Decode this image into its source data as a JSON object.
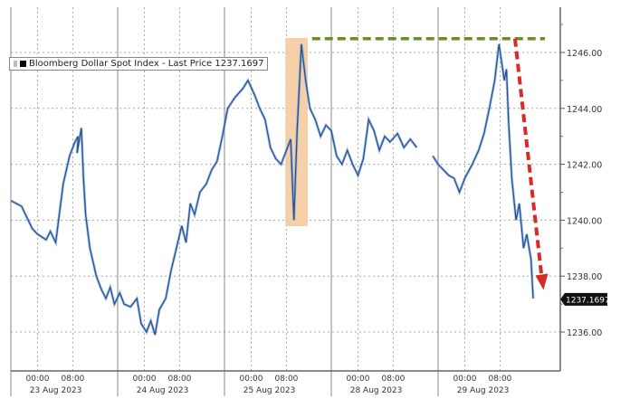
{
  "chart_data": {
    "type": "line",
    "title": "",
    "legend": {
      "label": "Bloomberg Dollar Spot Index - Last Price 1237.1697",
      "placement": "top-left"
    },
    "last_price_label": "1237.1697",
    "ylim": [
      1234.6,
      1248.3
    ],
    "y_ticks": [
      "1236.00",
      "1238.00",
      "1240.00",
      "1242.00",
      "1244.00",
      "1246.00"
    ],
    "y_tick_values": [
      1236,
      1238,
      1240,
      1242,
      1244,
      1246
    ],
    "x_days": [
      "23 Aug 2023",
      "24 Aug 2023",
      "25 Aug 2023",
      "28 Aug 2023",
      "29 Aug 2023"
    ],
    "x_hour_labels": [
      "00:00",
      "08:00"
    ],
    "xlim_days": [
      0,
      5.15
    ],
    "series": [
      {
        "name": "Bloomberg Dollar Spot Index",
        "color": "#2a4f8f",
        "points": [
          [
            0.0,
            1240.7
          ],
          [
            0.1,
            1240.5
          ],
          [
            0.2,
            1239.7
          ],
          [
            0.25,
            1239.5
          ],
          [
            0.33,
            1239.3
          ],
          [
            0.37,
            1239.6
          ],
          [
            0.42,
            1239.2
          ],
          [
            0.49,
            1241.3
          ],
          [
            0.55,
            1242.3
          ],
          [
            0.6,
            1242.8
          ],
          [
            0.63,
            1243.0
          ],
          [
            0.62,
            1242.4
          ],
          [
            0.66,
            1243.3
          ],
          [
            0.68,
            1241.5
          ],
          [
            0.7,
            1240.2
          ],
          [
            0.74,
            1239.0
          ],
          [
            0.8,
            1238.0
          ],
          [
            0.85,
            1237.5
          ],
          [
            0.89,
            1237.2
          ],
          [
            0.93,
            1237.6
          ],
          [
            0.97,
            1237.0
          ],
          [
            1.02,
            1237.4
          ],
          [
            1.06,
            1237.0
          ],
          [
            1.12,
            1236.9
          ],
          [
            1.18,
            1237.2
          ],
          [
            1.22,
            1236.3
          ],
          [
            1.27,
            1236.0
          ],
          [
            1.31,
            1236.4
          ],
          [
            1.35,
            1235.9
          ],
          [
            1.39,
            1236.8
          ],
          [
            1.45,
            1237.2
          ],
          [
            1.5,
            1238.2
          ],
          [
            1.55,
            1239.0
          ],
          [
            1.6,
            1239.8
          ],
          [
            1.64,
            1239.2
          ],
          [
            1.68,
            1240.6
          ],
          [
            1.72,
            1240.2
          ],
          [
            1.77,
            1241.0
          ],
          [
            1.83,
            1241.3
          ],
          [
            1.88,
            1241.8
          ],
          [
            1.93,
            1242.1
          ],
          [
            1.98,
            1243.0
          ],
          [
            2.03,
            1244.0
          ],
          [
            2.1,
            1244.4
          ],
          [
            2.17,
            1244.7
          ],
          [
            2.22,
            1245.0
          ],
          [
            2.28,
            1244.5
          ],
          [
            2.33,
            1244.0
          ],
          [
            2.38,
            1243.6
          ],
          [
            2.43,
            1242.6
          ],
          [
            2.48,
            1242.2
          ],
          [
            2.53,
            1242.0
          ],
          [
            2.58,
            1242.5
          ],
          [
            2.62,
            1242.9
          ],
          [
            2.65,
            1240.0
          ],
          [
            2.68,
            1243.2
          ],
          [
            2.72,
            1246.3
          ],
          [
            2.76,
            1245.0
          ],
          [
            2.8,
            1244.0
          ],
          [
            2.85,
            1243.6
          ],
          [
            2.9,
            1243.0
          ],
          [
            2.95,
            1243.4
          ],
          [
            3.0,
            1243.2
          ],
          [
            3.05,
            1242.3
          ],
          [
            3.1,
            1242.0
          ],
          [
            3.15,
            1242.5
          ],
          [
            3.2,
            1242.0
          ],
          [
            3.25,
            1241.6
          ],
          [
            3.3,
            1242.2
          ],
          [
            3.35,
            1243.6
          ],
          [
            3.4,
            1243.2
          ],
          [
            3.45,
            1242.5
          ],
          [
            3.5,
            1243.0
          ],
          [
            3.55,
            1242.8
          ],
          [
            3.62,
            1243.1
          ],
          [
            3.68,
            1242.6
          ],
          [
            3.74,
            1242.9
          ],
          [
            3.8,
            1242.6
          ],
          [
            3.95,
            1242.3
          ],
          [
            4.0,
            1242.0
          ],
          [
            4.05,
            1241.8
          ],
          [
            4.1,
            1241.6
          ],
          [
            4.15,
            1241.5
          ],
          [
            4.2,
            1241.0
          ],
          [
            4.25,
            1241.5
          ],
          [
            4.32,
            1242.0
          ],
          [
            4.38,
            1242.5
          ],
          [
            4.43,
            1243.1
          ],
          [
            4.48,
            1244.0
          ],
          [
            4.53,
            1245.0
          ],
          [
            4.57,
            1246.3
          ],
          [
            4.62,
            1245.0
          ],
          [
            4.64,
            1245.4
          ],
          [
            4.66,
            1243.5
          ],
          [
            4.69,
            1241.5
          ],
          [
            4.73,
            1240.0
          ],
          [
            4.76,
            1240.6
          ],
          [
            4.8,
            1239.0
          ],
          [
            4.83,
            1239.5
          ],
          [
            4.87,
            1238.6
          ],
          [
            4.89,
            1237.2
          ]
        ]
      }
    ],
    "annotations": {
      "highlight_band": {
        "from_day": 2.57,
        "to_day": 2.78,
        "color": "#f5c89a"
      },
      "resistance_line": {
        "value": 1246.3,
        "from_day": 2.82,
        "to_day": 5.0,
        "color": "#6b8e23"
      },
      "down_arrow": {
        "from_value": 1246.3,
        "to_value": 1237.7,
        "from_day": 4.72,
        "to_day": 4.97,
        "color": "#d92a2a"
      }
    }
  }
}
